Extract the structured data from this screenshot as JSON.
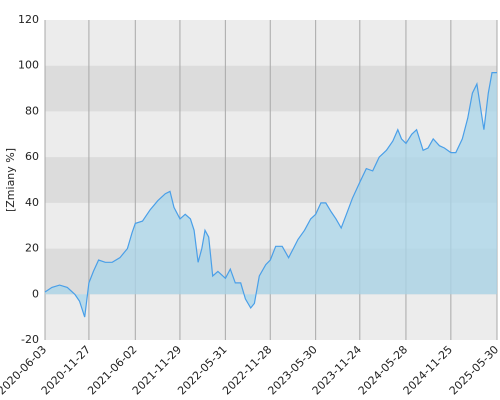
{
  "chart_data": {
    "type": "area",
    "y_label": "[Zmiany %]",
    "x": [
      "2020-06-03",
      "2020-07-01",
      "2020-08-01",
      "2020-09-01",
      "2020-10-01",
      "2020-10-20",
      "2020-11-10",
      "2020-11-27",
      "2020-12-15",
      "2021-01-05",
      "2021-02-01",
      "2021-03-01",
      "2021-04-01",
      "2021-05-01",
      "2021-05-20",
      "2021-06-02",
      "2021-07-01",
      "2021-08-01",
      "2021-09-01",
      "2021-10-01",
      "2021-10-20",
      "2021-11-05",
      "2021-11-29",
      "2021-12-20",
      "2022-01-10",
      "2022-01-25",
      "2022-02-10",
      "2022-02-25",
      "2022-03-10",
      "2022-03-25",
      "2022-04-10",
      "2022-05-01",
      "2022-05-31",
      "2022-06-20",
      "2022-07-10",
      "2022-08-01",
      "2022-08-20",
      "2022-09-10",
      "2022-09-25",
      "2022-10-15",
      "2022-11-10",
      "2022-11-28",
      "2022-12-20",
      "2023-01-15",
      "2023-02-10",
      "2023-03-01",
      "2023-03-20",
      "2023-04-15",
      "2023-05-10",
      "2023-05-30",
      "2023-06-20",
      "2023-07-10",
      "2023-08-01",
      "2023-08-20",
      "2023-09-10",
      "2023-10-01",
      "2023-10-25",
      "2023-11-24",
      "2023-12-20",
      "2024-01-15",
      "2024-02-10",
      "2024-03-10",
      "2024-04-05",
      "2024-04-25",
      "2024-05-10",
      "2024-05-28",
      "2024-06-20",
      "2024-07-10",
      "2024-08-05",
      "2024-08-25",
      "2024-09-15",
      "2024-10-10",
      "2024-10-30",
      "2024-11-25",
      "2024-12-15",
      "2025-01-10",
      "2025-02-01",
      "2025-02-20",
      "2025-03-10",
      "2025-04-07",
      "2025-04-25",
      "2025-05-10",
      "2025-05-30"
    ],
    "values": [
      1,
      3,
      4,
      3,
      0,
      -3,
      -10,
      5,
      10,
      15,
      14,
      14,
      16,
      20,
      27,
      31,
      32,
      37,
      41,
      44,
      45,
      38,
      33,
      35,
      33,
      28,
      14,
      20,
      28,
      25,
      8,
      10,
      7,
      11,
      5,
      5,
      -2,
      -6,
      -4,
      8,
      13,
      15,
      21,
      21,
      16,
      20,
      24,
      28,
      33,
      35,
      40,
      40,
      36,
      33,
      29,
      35,
      42,
      49,
      55,
      54,
      60,
      63,
      67,
      72,
      68,
      66,
      70,
      72,
      63,
      64,
      68,
      65,
      64,
      62,
      62,
      68,
      77,
      88,
      92,
      72,
      88,
      97,
      97
    ],
    "color": "#4a9fe8",
    "fill": "#a9d6ea",
    "xlim": [
      "2020-06-03",
      "2025-05-30"
    ],
    "xticks": [
      "2020-06-03",
      "2020-11-27",
      "2021-06-02",
      "2021-11-29",
      "2022-05-31",
      "2022-11-28",
      "2023-05-30",
      "2023-11-24",
      "2024-05-28",
      "2024-11-25",
      "2025-05-30"
    ],
    "ylim": [
      -20,
      120
    ],
    "yticks": [
      -20,
      0,
      20,
      40,
      60,
      80,
      100,
      120
    ],
    "grid": true
  }
}
